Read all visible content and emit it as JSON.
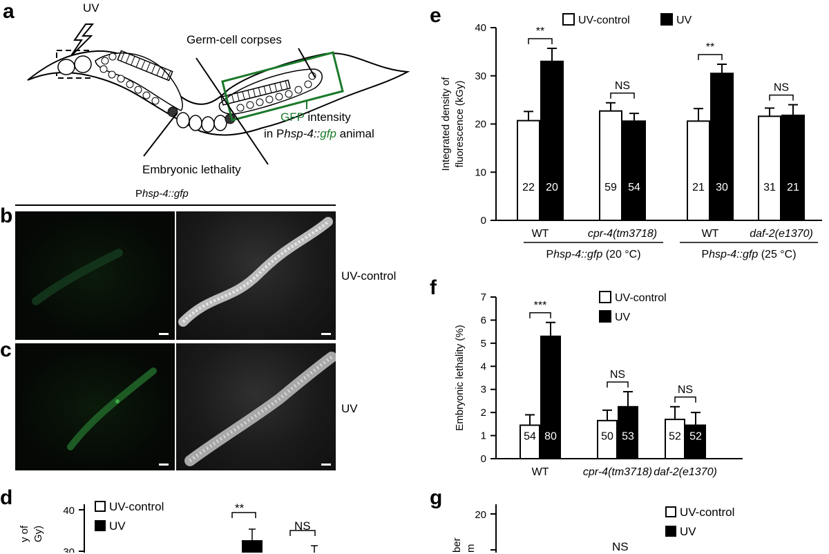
{
  "panels": {
    "a": {
      "label": "a",
      "uv": "UV",
      "corpses": "Germ-cell corpses",
      "gfp_word": "GFP",
      "gfp_rest": " intensity",
      "in_word": "in P",
      "hsp_text": "hsp-4::",
      "gfp_italic": "gfp",
      "animal_word": " animal",
      "lethality": "Embryonic lethality"
    },
    "b": {
      "label": "b",
      "header_p": "P",
      "header_rest": "hsp-4::gfp",
      "side": "UV-control"
    },
    "c": {
      "label": "c",
      "side": "UV"
    },
    "d": {
      "label": "d",
      "legend_ctrl": "UV-control",
      "legend_uv": "UV",
      "sig1": "**",
      "sig2": "NS"
    },
    "e": {
      "label": "e"
    },
    "f": {
      "label": "f"
    },
    "g": {
      "label": "g",
      "legend_ctrl": "UV-control",
      "legend_uv": "UV",
      "sig": "NS"
    }
  },
  "colors": {
    "gfp_green": "#1a7a2a",
    "bar_uv": "#000000",
    "bar_control": "#ffffff"
  },
  "chart_data": [
    {
      "panel": "e",
      "type": "bar",
      "ylabel": "Integrated density of fluorescence (kGy)",
      "ylim": [
        0,
        40
      ],
      "yticks": [
        0,
        10,
        20,
        30,
        40
      ],
      "legend": [
        "UV-control",
        "UV"
      ],
      "legend_position": "top",
      "groups": [
        {
          "label": "WT",
          "italic": false,
          "control": 20.7,
          "uv": 33.0,
          "control_err": 1.9,
          "uv_err": 2.7,
          "n_control": "22",
          "n_uv": "20",
          "sig": "**"
        },
        {
          "label": "cpr-4(tm3718)",
          "italic": true,
          "control": 22.7,
          "uv": 20.6,
          "control_err": 1.7,
          "uv_err": 1.6,
          "n_control": "59",
          "n_uv": "54",
          "sig": "NS"
        },
        {
          "label": "WT",
          "italic": false,
          "control": 20.6,
          "uv": 30.5,
          "control_err": 2.6,
          "uv_err": 1.9,
          "n_control": "21",
          "n_uv": "30",
          "sig": "**"
        },
        {
          "label": "daf-2(e1370)",
          "italic": true,
          "control": 21.6,
          "uv": 21.8,
          "control_err": 1.7,
          "uv_err": 2.2,
          "n_control": "31",
          "n_uv": "21",
          "sig": "NS"
        }
      ],
      "subgroup_labels": [
        {
          "p": "P",
          "text": "hsp-4::gfp",
          "cond": "(20 °C)"
        },
        {
          "p": "P",
          "text": "hsp-4::gfp",
          "cond": "(25 °C)"
        }
      ]
    },
    {
      "panel": "f",
      "type": "bar",
      "ylabel": "Embryonic lethality (%)",
      "ylim": [
        0,
        7
      ],
      "yticks": [
        0,
        1,
        2,
        3,
        4,
        5,
        6,
        7
      ],
      "legend": [
        "UV-control",
        "UV"
      ],
      "legend_position": "top-right",
      "groups": [
        {
          "label": "WT",
          "italic": false,
          "control": 1.45,
          "uv": 5.3,
          "control_err": 0.45,
          "uv_err": 0.6,
          "n_control": "54",
          "n_uv": "80",
          "sig": "***"
        },
        {
          "label": "cpr-4(tm3718)",
          "italic": true,
          "control": 1.65,
          "uv": 2.25,
          "control_err": 0.45,
          "uv_err": 0.65,
          "n_control": "50",
          "n_uv": "53",
          "sig": "NS"
        },
        {
          "label": "daf-2(e1370)",
          "italic": true,
          "control": 1.7,
          "uv": 1.45,
          "control_err": 0.55,
          "uv_err": 0.55,
          "n_control": "52",
          "n_uv": "52",
          "sig": "NS"
        }
      ]
    },
    {
      "panel": "d",
      "type": "bar",
      "yticks_visible": [
        40,
        30
      ],
      "partial": true
    },
    {
      "panel": "g",
      "type": "bar",
      "yticks_visible": [
        20
      ],
      "partial": true
    }
  ]
}
